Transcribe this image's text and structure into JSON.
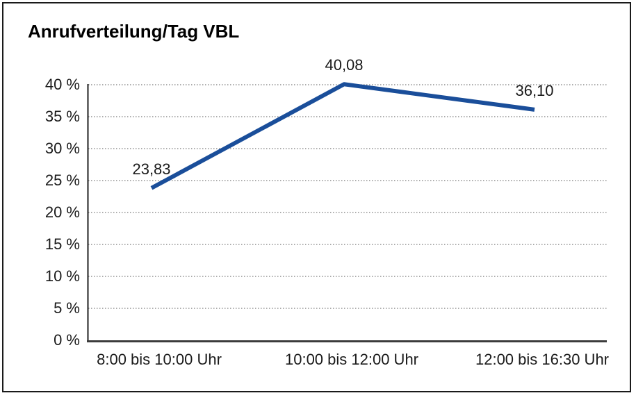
{
  "window": {
    "background_color": "#ffffff",
    "frame_border_color": "#1a1a1a"
  },
  "chart_data": {
    "type": "line",
    "title": "Anrufverteilung/Tag VBL",
    "categories": [
      "8:00 bis 10:00 Uhr",
      "10:00 bis 12:00 Uhr",
      "12:00 bis 16:30 Uhr"
    ],
    "values": [
      23.83,
      40.08,
      36.1
    ],
    "point_labels": [
      "23,83",
      "40,08",
      "36,10"
    ],
    "y_tick_labels": [
      "0 %",
      "5 %",
      "10 %",
      "15 %",
      "20 %",
      "25 %",
      "30 %",
      "35 %",
      "40 %"
    ],
    "ylim": [
      0,
      40
    ],
    "y_tick_step": 5,
    "xlabel": "",
    "ylabel": "",
    "legend": "none",
    "grid": "horizontal dotted",
    "line_color": "#1a4e9a",
    "axis_color": "#2b2b2b",
    "gridline_color": "#7a7a7a",
    "number_format": "decimal-comma"
  }
}
